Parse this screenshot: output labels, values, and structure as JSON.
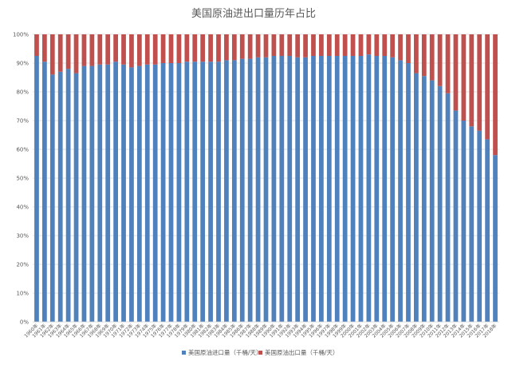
{
  "chart_data": {
    "type": "bar",
    "stacked": "percent",
    "title": "美国原油进出口量历年占比",
    "categories": [
      "1960年",
      "1961年",
      "1962年",
      "1963年",
      "1964年",
      "1965年",
      "1966年",
      "1967年",
      "1968年",
      "1969年",
      "1970年",
      "1971年",
      "1972年",
      "1973年",
      "1974年",
      "1975年",
      "1976年",
      "1977年",
      "1978年",
      "1979年",
      "1980年",
      "1981年",
      "1982年",
      "1983年",
      "1984年",
      "1985年",
      "1986年",
      "1987年",
      "1988年",
      "1989年",
      "1990年",
      "1991年",
      "1992年",
      "1993年",
      "1994年",
      "1995年",
      "1996年",
      "1997年",
      "1998年",
      "1999年",
      "2000年",
      "2001年",
      "2002年",
      "2003年",
      "2004年",
      "2005年",
      "2006年",
      "2007年",
      "2008年",
      "2009年",
      "2010年",
      "2011年",
      "2012年",
      "2013年",
      "2014年",
      "2015年",
      "2016年",
      "2017年",
      "2018年"
    ],
    "xtick_labels": [
      "1960年",
      "1961年",
      "1962年",
      "1963年",
      "1964年",
      "1965年",
      "1966年",
      "1967年",
      "1968年",
      "1969年",
      "1970年",
      "1971年",
      "1972年",
      "1973年",
      "1974年",
      "1975年",
      "1976年",
      "1977年",
      "1978年",
      "1979年",
      "1980年",
      "1981年",
      "1982年",
      "1983年",
      "1984年",
      "1985年",
      "1986年",
      "1987年",
      "1988年",
      "1989年",
      "1990年",
      "1991年",
      "1992年",
      "1993年",
      "1994年",
      "1995年",
      "1996年",
      "1997年",
      "1998年",
      "1999年",
      "2000年",
      "2001年",
      "2002年",
      "2003年",
      "2004年",
      "2005年",
      "2006年",
      "2007年",
      "2008年",
      "2009年",
      "2010年",
      "2011年",
      "2012年",
      "2013年",
      "2014年",
      "2015年",
      "2016年",
      "2017年",
      "2018年"
    ],
    "series": [
      {
        "name": "美国原油进口量（千桶/天）",
        "color": "#4f81bd",
        "share_pct": [
          92.5,
          90.5,
          86.0,
          87.0,
          88.0,
          86.5,
          89.0,
          89.0,
          89.5,
          89.5,
          90.5,
          89.5,
          88.5,
          89.0,
          89.5,
          89.5,
          90.0,
          90.0,
          90.0,
          90.5,
          90.5,
          90.5,
          90.5,
          90.5,
          91.0,
          91.0,
          91.5,
          91.5,
          92.0,
          92.0,
          92.5,
          92.5,
          92.5,
          92.0,
          92.0,
          92.5,
          92.5,
          92.5,
          92.5,
          92.5,
          92.5,
          92.5,
          93.0,
          92.5,
          92.5,
          92.0,
          91.0,
          90.0,
          86.5,
          85.5,
          84.0,
          82.0,
          79.5,
          73.5,
          70.0,
          68.0,
          66.5,
          63.5,
          58.0
        ]
      },
      {
        "name": "美国原油出口量（千桶/天）",
        "color": "#c0504d",
        "share_pct": [
          7.5,
          9.5,
          14.0,
          13.0,
          12.0,
          13.5,
          11.0,
          11.0,
          10.5,
          10.5,
          9.5,
          10.5,
          11.5,
          11.0,
          10.5,
          10.5,
          10.0,
          10.0,
          10.0,
          9.5,
          9.5,
          9.5,
          9.5,
          9.5,
          9.0,
          9.0,
          8.5,
          8.5,
          8.0,
          8.0,
          7.5,
          7.5,
          7.5,
          8.0,
          8.0,
          7.5,
          7.5,
          7.5,
          7.5,
          7.5,
          7.5,
          7.5,
          7.0,
          7.5,
          7.5,
          8.0,
          9.0,
          10.0,
          13.5,
          14.5,
          16.0,
          18.0,
          20.5,
          26.5,
          30.0,
          32.0,
          33.5,
          36.5,
          42.0
        ]
      }
    ],
    "y_ticks": [
      "0%",
      "10%",
      "20%",
      "30%",
      "40%",
      "50%",
      "60%",
      "70%",
      "80%",
      "90%",
      "100%"
    ],
    "ylim": [
      0,
      100
    ],
    "grid": true,
    "legend_position": "bottom",
    "xlabel": "",
    "ylabel": ""
  }
}
